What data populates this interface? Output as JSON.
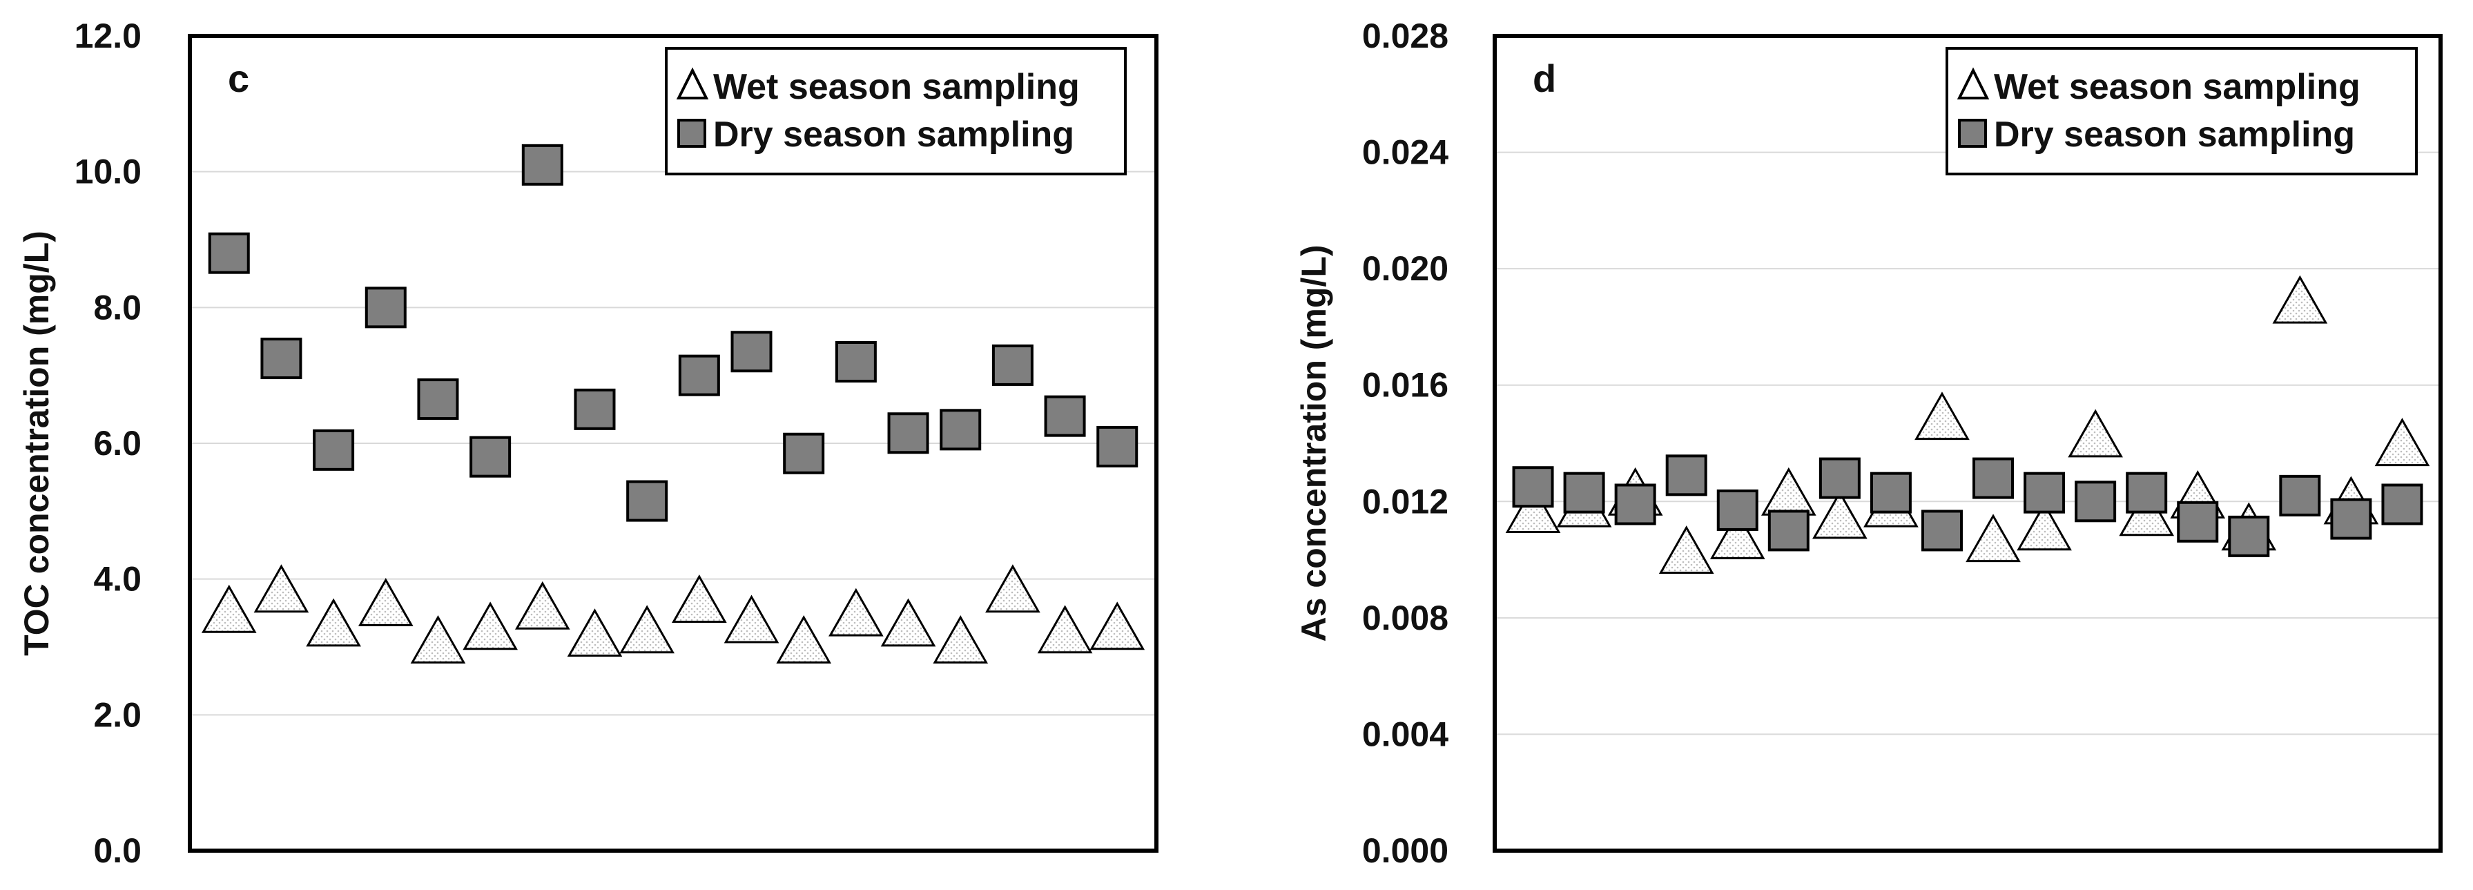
{
  "chart_data": [
    {
      "type": "scatter",
      "panel_label": "c",
      "ylabel": "TOC concentration (mg/L)",
      "ylim": [
        0,
        12
      ],
      "yticks": [
        "0.0",
        "2.0",
        "4.0",
        "6.0",
        "8.0",
        "10.0",
        "12.0"
      ],
      "ytick_values": [
        0,
        2,
        4,
        6,
        8,
        10,
        12
      ],
      "grid": true,
      "legend_position": "top-right",
      "x": [
        1,
        2,
        3,
        4,
        5,
        6,
        7,
        8,
        9,
        10,
        11,
        12,
        13,
        14,
        15,
        16,
        17,
        18
      ],
      "series": [
        {
          "name": "Wet season sampling",
          "marker": "triangle",
          "values": [
            3.5,
            3.8,
            3.3,
            3.6,
            3.05,
            3.25,
            3.55,
            3.15,
            3.2,
            3.65,
            3.35,
            3.05,
            3.45,
            3.3,
            3.05,
            3.8,
            3.2,
            3.25
          ]
        },
        {
          "name": "Dry season sampling",
          "marker": "square",
          "values": [
            8.8,
            7.25,
            5.9,
            8.0,
            6.65,
            5.8,
            10.1,
            6.5,
            5.15,
            7.0,
            7.35,
            5.85,
            7.2,
            6.15,
            6.2,
            7.15,
            6.4,
            5.95
          ]
        }
      ]
    },
    {
      "type": "scatter",
      "panel_label": "d",
      "ylabel": "As concentration (mg/L)",
      "ylim": [
        0,
        0.028
      ],
      "yticks": [
        "0.000",
        "0.004",
        "0.008",
        "0.012",
        "0.016",
        "0.020",
        "0.024",
        "0.028"
      ],
      "ytick_values": [
        0,
        0.004,
        0.008,
        0.012,
        0.016,
        0.02,
        0.024,
        0.028
      ],
      "grid": true,
      "legend_position": "top-right",
      "x": [
        1,
        2,
        3,
        4,
        5,
        6,
        7,
        8,
        9,
        10,
        11,
        12,
        13,
        14,
        15,
        16,
        17,
        18
      ],
      "series": [
        {
          "name": "Wet season sampling",
          "marker": "triangle",
          "values": [
            0.0116,
            0.0118,
            0.0122,
            0.0102,
            0.0107,
            0.0122,
            0.0114,
            0.0118,
            0.0148,
            0.0106,
            0.011,
            0.0142,
            0.0115,
            0.0121,
            0.011,
            0.0188,
            0.0119,
            0.0139
          ]
        },
        {
          "name": "Dry season sampling",
          "marker": "square",
          "values": [
            0.0125,
            0.0123,
            0.0119,
            0.0129,
            0.0117,
            0.011,
            0.0128,
            0.0123,
            0.011,
            0.0128,
            0.0123,
            0.012,
            0.0123,
            0.0113,
            0.0108,
            0.0122,
            0.0114,
            0.0119
          ]
        }
      ]
    }
  ]
}
